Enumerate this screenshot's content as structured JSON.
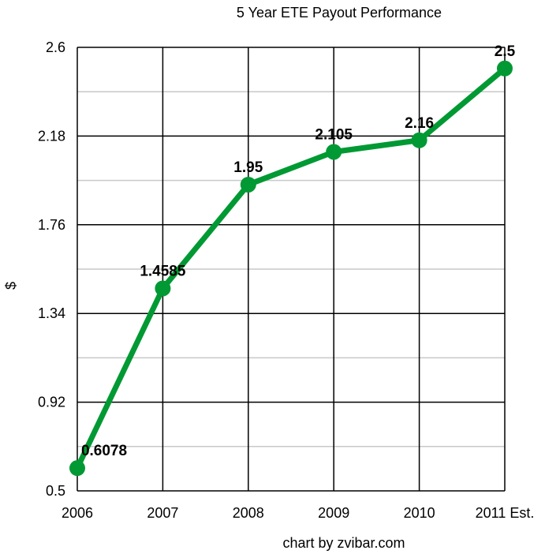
{
  "chart_data": {
    "type": "line",
    "title": "5 Year ETE Payout Performance",
    "xlabel": "",
    "ylabel": "$",
    "categories": [
      "2006",
      "2007",
      "2008",
      "2009",
      "2010",
      "2011 Est."
    ],
    "series": [
      {
        "values": [
          0.6078,
          1.4585,
          1.95,
          2.105,
          2.16,
          2.5
        ],
        "labels": [
          "0.6078",
          "1.4585",
          "1.95",
          "2.105",
          "2.16",
          "2.5"
        ]
      }
    ],
    "yticks": [
      "0.5",
      "0.92",
      "1.34",
      "1.76",
      "2.18",
      "2.6"
    ],
    "ylim": [
      0.5,
      2.6
    ],
    "grid": true,
    "line_color": "#009933",
    "credit": "chart by zvibar.com"
  }
}
